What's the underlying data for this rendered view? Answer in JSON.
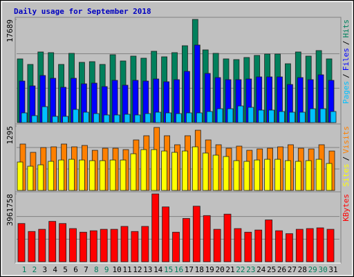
{
  "chart_data": [
    {
      "type": "bar",
      "title": "Daily usage for September 2018",
      "ylim": [
        0,
        17689
      ],
      "yticks": [
        17689
      ],
      "legend_separator": "/",
      "series": [
        {
          "name": "Hits",
          "color": "#00805c",
          "values": [
            10921,
            9972,
            12109,
            11990,
            9972,
            11872,
            10329,
            10447,
            9972,
            11634,
            10566,
            11397,
            11041,
            12228,
            11278,
            11990,
            13177,
            17689,
            12465,
            11872,
            10922,
            10803,
            11160,
            11516,
            11753,
            11753,
            10091,
            12109,
            11397,
            12347,
            10922
          ]
        },
        {
          "name": "Files",
          "color": "#0000ff",
          "values": [
            7123,
            6292,
            8073,
            7598,
            6055,
            7598,
            6648,
            6767,
            6173,
            7242,
            6411,
            7242,
            7123,
            7479,
            7004,
            7360,
            8785,
            13296,
            8429,
            7717,
            7360,
            7360,
            7479,
            7835,
            7835,
            7835,
            6529,
            7717,
            7360,
            8191,
            7242
          ]
        },
        {
          "name": "Pages",
          "color": "#00c0ff",
          "values": [
            1662,
            1187,
            2730,
            1068,
            1068,
            2256,
            1781,
            1543,
            1306,
            1306,
            1424,
            1306,
            1543,
            1781,
            1662,
            1543,
            1662,
            1662,
            1899,
            2374,
            2374,
            2849,
            2612,
            2137,
            2137,
            1899,
            1781,
            1781,
            2374,
            2374,
            1899
          ]
        }
      ]
    },
    {
      "type": "bar",
      "ylim": [
        0,
        1295
      ],
      "yticks": [
        1295
      ],
      "legend_separator": "/",
      "series": [
        {
          "name": "Visits",
          "color": "#ff8000",
          "values": [
            933,
            766,
            863,
            877,
            933,
            877,
            905,
            807,
            849,
            849,
            821,
            1016,
            1100,
            1267,
            1100,
            919,
            1100,
            1211,
            1016,
            919,
            849,
            891,
            807,
            835,
            849,
            877,
            919,
            849,
            835,
            919,
            793
          ]
        },
        {
          "name": "Sites",
          "color": "#ffff00",
          "values": [
            571,
            487,
            515,
            585,
            612,
            626,
            612,
            599,
            599,
            612,
            612,
            738,
            821,
            821,
            793,
            766,
            793,
            877,
            752,
            710,
            682,
            599,
            585,
            612,
            626,
            626,
            599,
            585,
            599,
            626,
            543
          ]
        }
      ]
    },
    {
      "type": "bar",
      "ylim": [
        0,
        3961758
      ],
      "yticks": [
        3961758
      ],
      "categories": [
        "1",
        "2",
        "3",
        "4",
        "5",
        "6",
        "7",
        "8",
        "9",
        "10",
        "11",
        "12",
        "13",
        "14",
        "15",
        "16",
        "17",
        "18",
        "19",
        "20",
        "21",
        "22",
        "23",
        "24",
        "25",
        "26",
        "27",
        "28",
        "29",
        "30",
        "31"
      ],
      "category_colors": [
        "#00805c",
        "#00805c",
        "#000000",
        "#000000",
        "#000000",
        "#000000",
        "#000000",
        "#00805c",
        "#00805c",
        "#000000",
        "#000000",
        "#000000",
        "#000000",
        "#000000",
        "#00805c",
        "#00805c",
        "#000000",
        "#000000",
        "#000000",
        "#000000",
        "#000000",
        "#00805c",
        "#00805c",
        "#000000",
        "#000000",
        "#000000",
        "#000000",
        "#000000",
        "#00805c",
        "#00805c",
        "#000000"
      ],
      "series": [
        {
          "name": "KBytes",
          "color": "#ff0000",
          "values": [
            2233738,
            1770132,
            1896570,
            2360176,
            2233738,
            1938716,
            1727986,
            1812278,
            1896570,
            1896570,
            2065154,
            1770132,
            2065154,
            3961758,
            3203096,
            1727986,
            2528760,
            3245242,
            2697344,
            1896570,
            2781636,
            1938716,
            1727986,
            1854424,
            2444468,
            1812278,
            1643694,
            1896570,
            1938716,
            1980862,
            1896570
          ]
        }
      ]
    }
  ]
}
